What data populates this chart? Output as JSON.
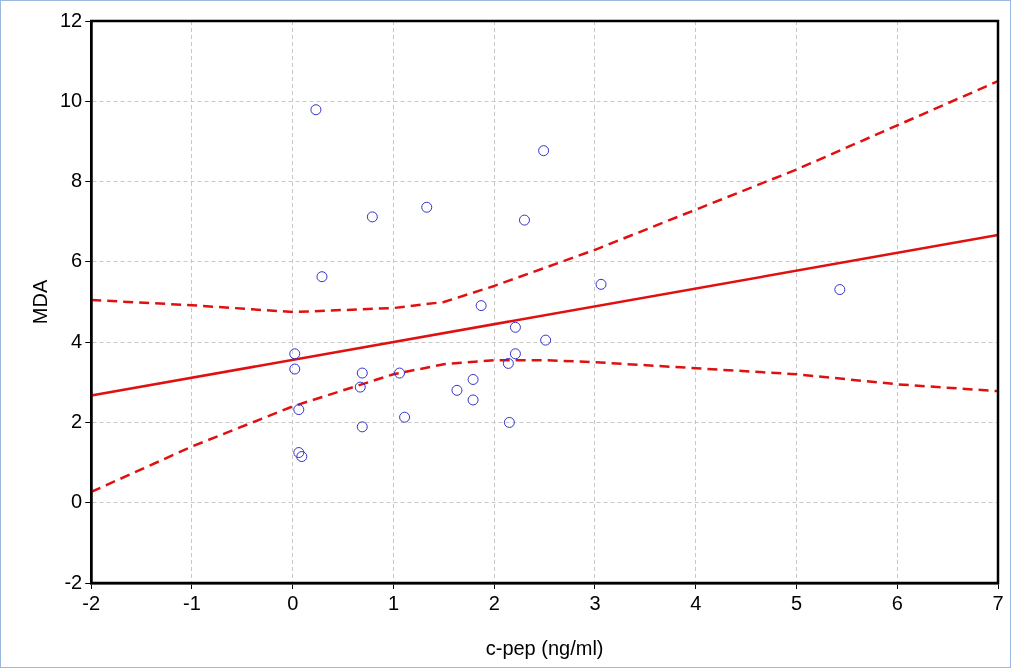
{
  "chart_data": {
    "type": "scatter",
    "xlabel": "c-pep (ng/ml)",
    "ylabel": "MDA",
    "xlim": [
      -2,
      7
    ],
    "xticks": [
      -2,
      -1,
      0,
      1,
      2,
      3,
      4,
      5,
      6,
      7
    ],
    "ylim": [
      -2,
      12
    ],
    "yticks": [
      -2,
      0,
      2,
      4,
      6,
      8,
      10,
      12
    ],
    "grid": true,
    "legend": false,
    "series": [
      {
        "color": "#3333cc",
        "marker": "circle",
        "x": [
          0.23,
          0.79,
          1.33,
          0.29,
          2.3,
          2.49,
          3.06,
          5.43,
          1.87,
          2.21,
          2.51,
          0.02,
          2.21,
          0.02,
          2.14,
          0.69,
          1.06,
          0.67,
          1.79,
          1.63,
          1.79,
          0.06,
          1.11,
          0.69,
          2.15,
          0.06,
          0.09
        ],
        "values": [
          9.79,
          7.12,
          7.36,
          5.63,
          7.04,
          8.77,
          5.44,
          5.31,
          4.91,
          4.37,
          4.05,
          3.71,
          3.71,
          3.33,
          3.47,
          3.23,
          3.23,
          2.88,
          3.07,
          2.8,
          2.56,
          2.32,
          2.13,
          1.89,
          2.0,
          1.25,
          1.15
        ]
      },
      {
        "type": "line",
        "color": "#e01010",
        "line_style": "solid",
        "marker": "none",
        "x": [
          -2,
          7
        ],
        "values": [
          2.67,
          6.67
        ]
      },
      {
        "type": "line",
        "color": "#e01010",
        "line_style": "dashed",
        "marker": "none",
        "x": [
          -2,
          -1,
          0,
          1,
          1.5,
          2,
          2.5,
          3,
          4,
          5,
          6,
          7
        ],
        "values": [
          5.05,
          4.92,
          4.75,
          4.85,
          5.0,
          5.4,
          5.85,
          6.3,
          7.3,
          8.3,
          9.4,
          10.5
        ]
      },
      {
        "type": "line",
        "color": "#e01010",
        "line_style": "dashed",
        "marker": "none",
        "x": [
          -2,
          -1,
          0,
          0.5,
          1,
          1.5,
          2,
          2.5,
          3,
          4,
          5,
          6,
          7
        ],
        "values": [
          0.27,
          1.4,
          2.4,
          2.8,
          3.2,
          3.45,
          3.55,
          3.55,
          3.5,
          3.35,
          3.2,
          2.95,
          2.78
        ]
      }
    ]
  }
}
